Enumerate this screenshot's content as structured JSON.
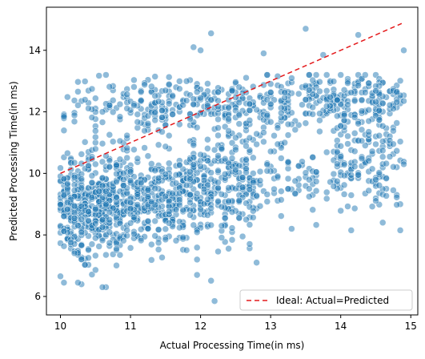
{
  "chart_data": {
    "type": "scatter",
    "title": "",
    "xlabel": "Actual Processing Time(in ms)",
    "ylabel": "Predicted Processing Time(in ms)",
    "xlim": [
      9.8,
      15.1
    ],
    "ylim": [
      5.4,
      15.4
    ],
    "xticks": [
      10,
      11,
      12,
      13,
      14,
      15
    ],
    "yticks": [
      6,
      8,
      10,
      12,
      14
    ],
    "grid": false,
    "legend": {
      "placement": "bottom-right",
      "entries": [
        {
          "label": "Ideal: Actual=Predicted",
          "style": "dashed",
          "color": "#e41a1c"
        }
      ]
    },
    "ideal_line": {
      "x": [
        10.0,
        14.87
      ],
      "y": [
        10.0,
        14.87
      ]
    },
    "scatter_color": "#1f77b4",
    "scatter_alpha": 0.5,
    "clusters": [
      {
        "x_range": [
          10.0,
          10.9
        ],
        "y_mean": 9.0,
        "y_sd": 0.85,
        "count": 480
      },
      {
        "x_range": [
          10.9,
          11.8
        ],
        "y_mean": 9.2,
        "y_sd": 0.8,
        "count": 300
      },
      {
        "x_range": [
          11.8,
          12.8
        ],
        "y_mean": 9.6,
        "y_sd": 0.8,
        "count": 280
      },
      {
        "x_range": [
          12.8,
          13.7
        ],
        "y_mean": 9.9,
        "y_sd": 0.6,
        "count": 70
      },
      {
        "x_range": [
          13.8,
          14.9
        ],
        "y_mean": 10.2,
        "y_sd": 0.8,
        "count": 140
      },
      {
        "x_range": [
          10.0,
          11.2
        ],
        "y_mean": 12.2,
        "y_sd": 0.45,
        "count": 80
      },
      {
        "x_range": [
          11.2,
          12.2
        ],
        "y_mean": 12.3,
        "y_sd": 0.45,
        "count": 110
      },
      {
        "x_range": [
          12.2,
          13.5
        ],
        "y_mean": 12.2,
        "y_sd": 0.45,
        "count": 150
      },
      {
        "x_range": [
          13.5,
          14.9
        ],
        "y_mean": 12.4,
        "y_sd": 0.45,
        "count": 200
      }
    ],
    "outliers": [
      {
        "x": 12.2,
        "y": 5.85
      },
      {
        "x": 12.15,
        "y": 14.55
      },
      {
        "x": 13.5,
        "y": 14.7
      },
      {
        "x": 14.25,
        "y": 14.5
      },
      {
        "x": 14.9,
        "y": 14.0
      },
      {
        "x": 11.9,
        "y": 14.1
      },
      {
        "x": 12.0,
        "y": 14.0
      },
      {
        "x": 10.05,
        "y": 6.45
      },
      {
        "x": 10.25,
        "y": 6.45
      },
      {
        "x": 11.95,
        "y": 6.7
      },
      {
        "x": 12.8,
        "y": 7.1
      },
      {
        "x": 13.3,
        "y": 8.2
      },
      {
        "x": 14.15,
        "y": 8.15
      },
      {
        "x": 14.85,
        "y": 8.15
      },
      {
        "x": 14.6,
        "y": 8.4
      },
      {
        "x": 13.75,
        "y": 13.85
      },
      {
        "x": 12.9,
        "y": 13.9
      }
    ]
  }
}
